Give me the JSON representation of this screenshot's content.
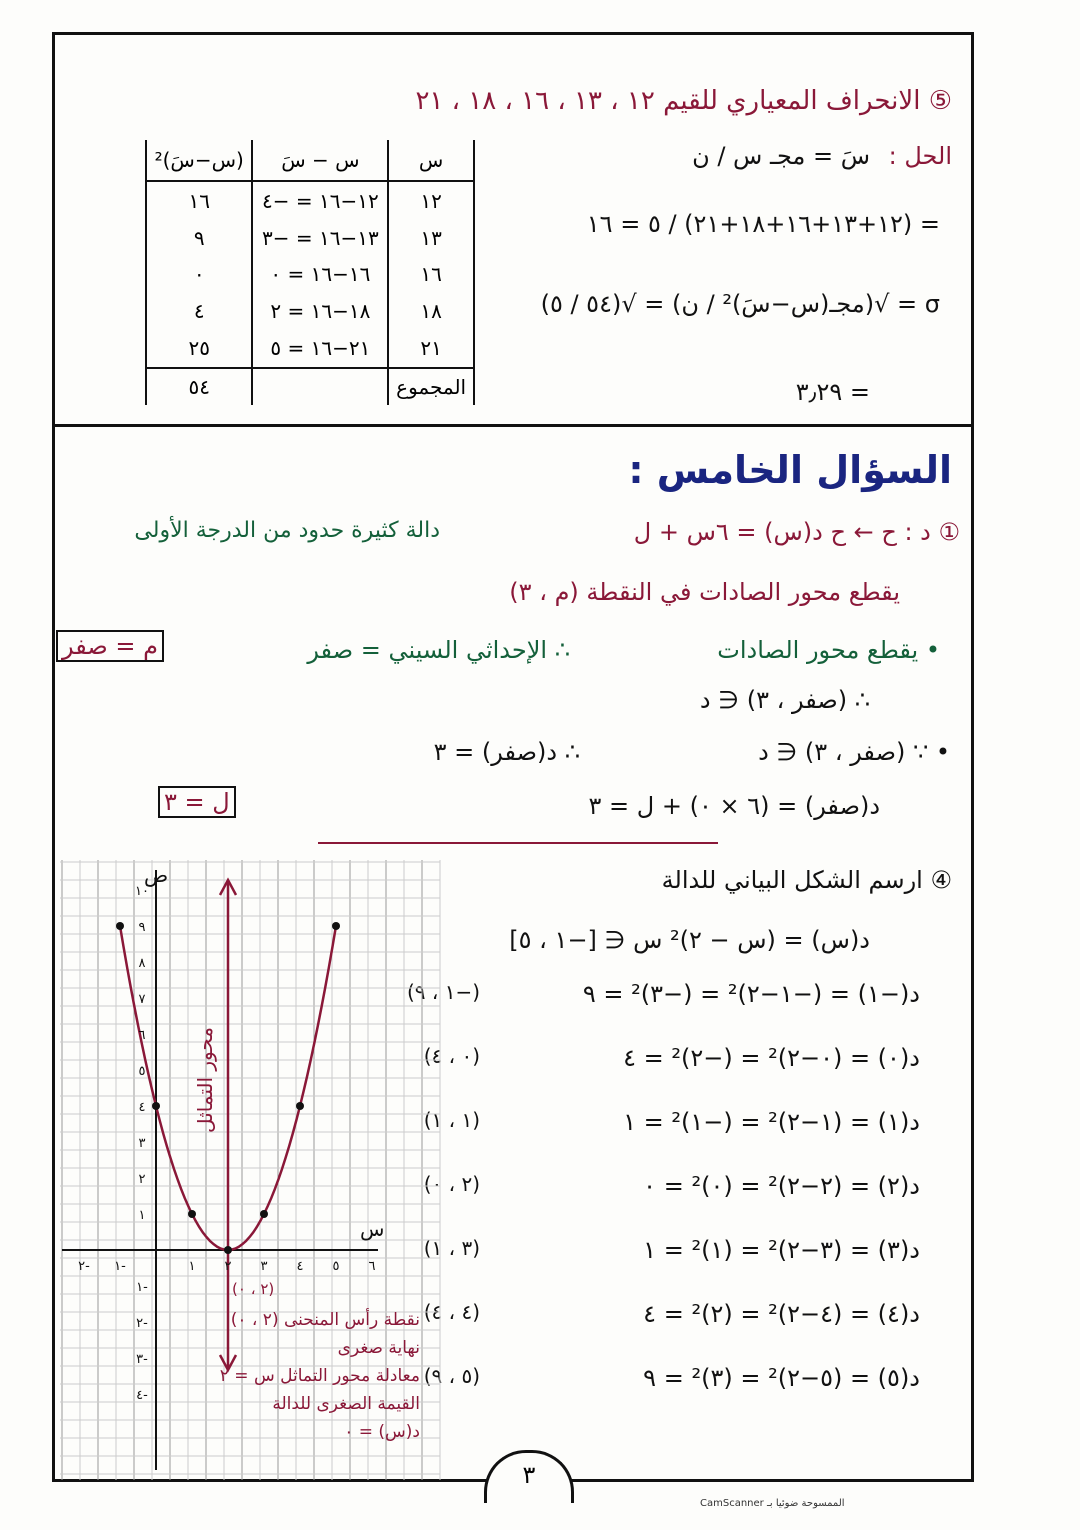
{
  "section_top": {
    "title": "⑤ الانحراف المعياري للقيم ١٢ ، ١٣ ، ١٦ ، ١٨ ، ٢١",
    "solution_label": "الحل :",
    "mean_formula": "سَ = مجـ س / ن",
    "mean_calc": "= (١٢+١٣+١٦+١٨+٢١) / ٥ = ١٦",
    "sd_formula": "σ = √(مجـ(س−سَ)² / ن) = √(٥٤ / ٥)",
    "sd_result": "= ٣٫٢٩",
    "table": {
      "headers": [
        "س",
        "س − سَ",
        "(س−سَ)²"
      ],
      "rows": [
        [
          "١٢",
          "١٢−١٦ = −٤",
          "١٦"
        ],
        [
          "١٣",
          "١٣−١٦ = −٣",
          "٩"
        ],
        [
          "١٦",
          "١٦−١٦ = ٠",
          "٠"
        ],
        [
          "١٨",
          "١٨−١٦ = ٢",
          "٤"
        ],
        [
          "٢١",
          "٢١−١٦ = ٥",
          "٢٥"
        ]
      ],
      "total_label": "المجموع",
      "total": "٥٤"
    }
  },
  "section_five": {
    "heading": "السؤال الخامس :",
    "q1_line1": "① د : ح ← ح    د(س) = ٦س + ل",
    "q1_note": "دالة كثيرة حدود من الدرجة الأولى",
    "q1_line2": "يقطع محور الصادات في النقطة (م ، ٣)",
    "q1_line3": "• يقطع محور الصادات",
    "q1_line3b": "∴ الإحداثي السيني = صفر",
    "q1_box1": "م = صفر",
    "q1_line4": "∴ (صفر ، ٣) ∈ د",
    "q1_line5": "• ∵ (صفر ، ٣) ∈ د",
    "q1_line5b": "∴ د(صفر) = ٣",
    "q1_line6": "د(صفر) = (٦ × ٠) + ل = ٣",
    "q1_box2": "ل = ٣",
    "q2_title": "④ ارسم الشكل البياني للدالة",
    "q2_def": "د(س) = (س − ٢)²    س ∈ [−١ ، ٥]",
    "q2_rows": [
      {
        "calc": "د(−١) = (−١−٢)² = (−٣)² = ٩",
        "point": "(−١ ، ٩)"
      },
      {
        "calc": "د(٠) = (٠−٢)² = (−٢)² = ٤",
        "point": "(٠ ، ٤)"
      },
      {
        "calc": "د(١) = (١−٢)² = (−١)² = ١",
        "point": "(١ ، ١)"
      },
      {
        "calc": "د(٢) = (٢−٢)² = (٠)² = ٠",
        "point": "(٢ ، ٠)"
      },
      {
        "calc": "د(٣) = (٣−٢)² = (١)² = ١",
        "point": "(٣ ، ١)"
      },
      {
        "calc": "د(٤) = (٤−٢)² = (٢)² = ٤",
        "point": "(٤ ، ٤)"
      },
      {
        "calc": "د(٥) = (٥−٢)² = (٣)² = ٩",
        "point": "(٥ ، ٩)"
      }
    ],
    "graph": {
      "y_axis_label": "ص",
      "x_axis_label": "س",
      "symmetry_label": "محور التماثل",
      "vertex_label": "(٢ ، ٠)",
      "notes": [
        "نقطة رأس المنحنى (٢ ، ٠)",
        "نهاية صغرى",
        "معادلة محور التماثل س = ٢",
        "القيمة الصغرى للدالة",
        "د(س) = ٠"
      ],
      "points": [
        [
          -1,
          9
        ],
        [
          0,
          4
        ],
        [
          1,
          1
        ],
        [
          2,
          0
        ],
        [
          3,
          1
        ],
        [
          4,
          4
        ],
        [
          5,
          9
        ]
      ],
      "curve_color": "#8a1838"
    }
  },
  "page_number": "٣",
  "footer": "الممسوحة ضوئيا بـ CamScanner"
}
